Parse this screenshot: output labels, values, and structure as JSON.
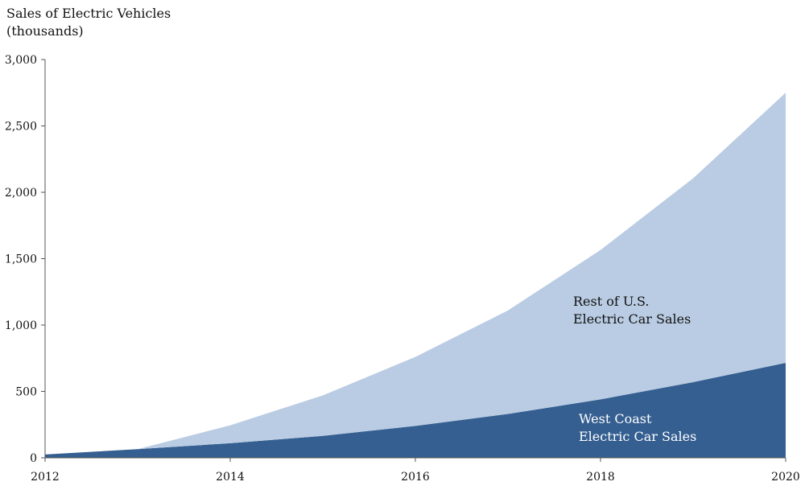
{
  "chart_data": {
    "type": "area",
    "stacked": true,
    "ylabel_lines": [
      "Sales of Electric Vehicles",
      "(thousands)"
    ],
    "x": [
      2012,
      2013,
      2014,
      2015,
      2016,
      2017,
      2018,
      2019,
      2020
    ],
    "xticks": [
      "2012",
      "2014",
      "2016",
      "2018",
      "2020"
    ],
    "xlim": [
      2012,
      2020
    ],
    "yticks": [
      "0",
      "500",
      "1,000",
      "1,500",
      "2,000",
      "2,500",
      "3,000"
    ],
    "ylim": [
      0,
      3000
    ],
    "grid": false,
    "series": [
      {
        "name": "West Coast Electric Car Sales",
        "label_lines": [
          "West Coast",
          "Electric Car Sales"
        ],
        "values": [
          25,
          65,
          110,
          165,
          240,
          330,
          440,
          570,
          715
        ],
        "color": "#355f91",
        "label_color": "#ffffff"
      },
      {
        "name": "Rest of U.S. Electric Car Sales",
        "label_lines": [
          "Rest of U.S.",
          "Electric Car Sales"
        ],
        "values": [
          0,
          0,
          135,
          305,
          520,
          780,
          1125,
          1535,
          2035
        ],
        "color": "#b9cce3",
        "label_color": "#111111"
      }
    ]
  }
}
